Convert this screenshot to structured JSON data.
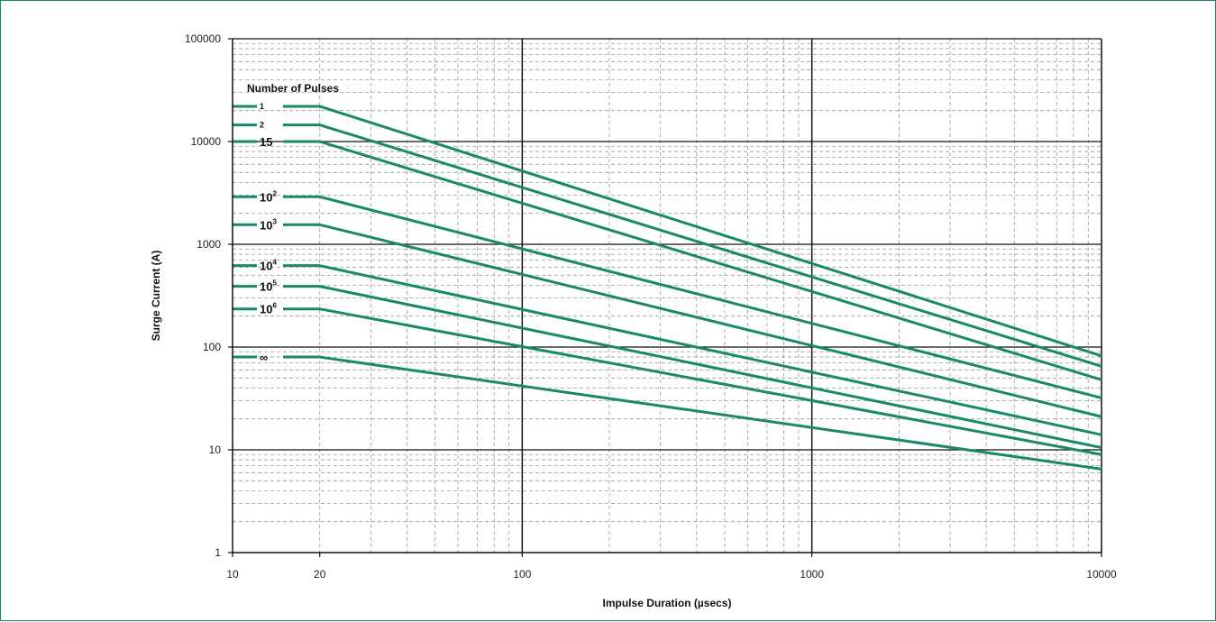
{
  "chart_data": {
    "type": "line",
    "title": "",
    "xlabel": "Impulse Duration (µsecs)",
    "ylabel": "Surge Current (A)",
    "x_scale": "log",
    "y_scale": "log",
    "xlim": [
      10,
      10000
    ],
    "ylim": [
      1,
      100000
    ],
    "x_ticks": [
      "10",
      "20",
      "100",
      "1000",
      "10000"
    ],
    "y_ticks": [
      "1",
      "10",
      "100",
      "1000",
      "10000",
      "100000"
    ],
    "grid": true,
    "legend_title": "Number of Pulses",
    "legend_position": "top-left",
    "line_color": "#1a8a66",
    "series": [
      {
        "name": "1",
        "label_base": "1",
        "label_exp": "",
        "x": [
          20,
          10000
        ],
        "y": [
          22000,
          82
        ]
      },
      {
        "name": "2",
        "label_base": "2",
        "label_exp": "",
        "x": [
          20,
          10000
        ],
        "y": [
          14500,
          65
        ]
      },
      {
        "name": "15",
        "label_base": "15",
        "label_exp": "",
        "x": [
          20,
          10000
        ],
        "y": [
          10000,
          48
        ]
      },
      {
        "name": "10^2",
        "label_base": "10",
        "label_exp": "2",
        "x": [
          20,
          10000
        ],
        "y": [
          2900,
          32
        ]
      },
      {
        "name": "10^3",
        "label_base": "10",
        "label_exp": "3",
        "x": [
          20,
          10000
        ],
        "y": [
          1550,
          21
        ]
      },
      {
        "name": "10^4",
        "label_base": "10",
        "label_exp": "4",
        "x": [
          20,
          10000
        ],
        "y": [
          620,
          14
        ]
      },
      {
        "name": "10^5",
        "label_base": "10",
        "label_exp": "5",
        "x": [
          20,
          10000
        ],
        "y": [
          390,
          10.5
        ]
      },
      {
        "name": "10^6",
        "label_base": "10",
        "label_exp": "6",
        "x": [
          20,
          10000
        ],
        "y": [
          235,
          9
        ]
      },
      {
        "name": "∞",
        "label_base": "∞",
        "label_exp": "",
        "x": [
          20,
          10000
        ],
        "y": [
          80,
          6.5
        ]
      }
    ]
  }
}
